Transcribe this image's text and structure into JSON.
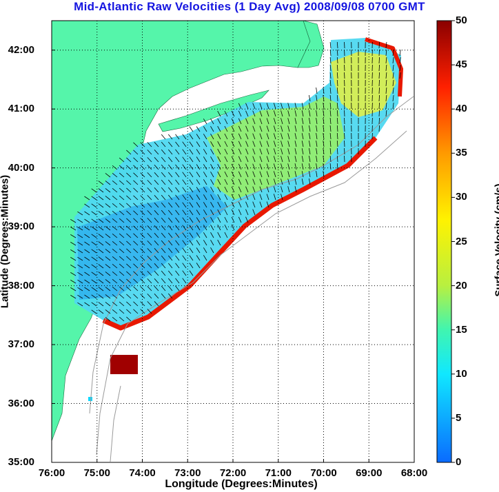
{
  "title": "Mid-Atlantic Raw Velocities (1 Day Avg) 2008/09/08 0700 GMT",
  "colors": {
    "title": "#1515e0",
    "land": "#55f5aa",
    "grid": "#000000",
    "bathy": "#9a9a9a",
    "arrow": "#000000",
    "frame": "#000000"
  },
  "map": {
    "xlabel": "Longitude (Degrees:Minutes)",
    "ylabel": "Latitude (Degrees:Minutes)",
    "lon_range": [
      -76,
      -68
    ],
    "lat_range": [
      35,
      42.5
    ],
    "x_ticks": [
      {
        "value": -76,
        "label": "76:00"
      },
      {
        "value": -75,
        "label": "75:00"
      },
      {
        "value": -74,
        "label": "74:00"
      },
      {
        "value": -73,
        "label": "73:00"
      },
      {
        "value": -72,
        "label": "72:00"
      },
      {
        "value": -71,
        "label": "71:00"
      },
      {
        "value": -70,
        "label": "70:00"
      },
      {
        "value": -69,
        "label": "69:00"
      },
      {
        "value": -68,
        "label": "68:00"
      }
    ],
    "y_ticks": [
      {
        "value": 35,
        "label": "35:00"
      },
      {
        "value": 36,
        "label": "36:00"
      },
      {
        "value": 37,
        "label": "37:00"
      },
      {
        "value": 38,
        "label": "38:00"
      },
      {
        "value": 39,
        "label": "39:00"
      },
      {
        "value": 40,
        "label": "40:00"
      },
      {
        "value": 41,
        "label": "41:00"
      },
      {
        "value": 42,
        "label": "42:00"
      }
    ],
    "grid": "dotted"
  },
  "colorbar": {
    "label": "Surface Velocity (cm/s)",
    "range": [
      0,
      50
    ],
    "colormap": "jet",
    "ticks": [
      {
        "value": 0,
        "label": "0"
      },
      {
        "value": 5,
        "label": "5"
      },
      {
        "value": 10,
        "label": "10"
      },
      {
        "value": 15,
        "label": "15"
      },
      {
        "value": 20,
        "label": "20"
      },
      {
        "value": 25,
        "label": "25"
      },
      {
        "value": 30,
        "label": "30"
      },
      {
        "value": 35,
        "label": "35"
      },
      {
        "value": 40,
        "label": "40"
      },
      {
        "value": 45,
        "label": "45"
      },
      {
        "value": 50,
        "label": "50"
      }
    ]
  }
}
